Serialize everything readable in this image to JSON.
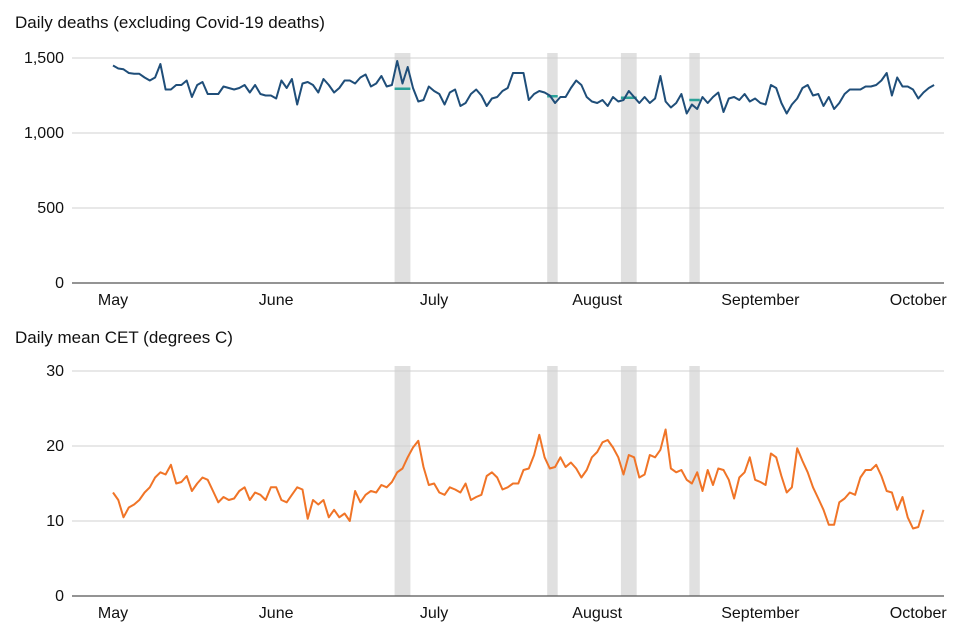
{
  "chart_data": [
    {
      "type": "line",
      "title": "Daily deaths (excluding Covid-19 deaths)",
      "x_start": "2020-05-01",
      "x_end": "2020-09-30",
      "x_tick_labels": [
        "May",
        "June",
        "July",
        "August",
        "September",
        "October"
      ],
      "x_tick_dates": [
        "2020-05-01",
        "2020-06-01",
        "2020-07-01",
        "2020-08-01",
        "2020-09-01",
        "2020-10-01"
      ],
      "y_ticks": [
        0,
        500,
        1000,
        1500
      ],
      "y_tick_labels": [
        "0",
        "500",
        "1,000",
        "1,500"
      ],
      "ylim": [
        0,
        1500
      ],
      "grid": "horizontal",
      "line_color": "#1f4e79",
      "baseline_color": "#2aa198",
      "highlight_color": "#e0e0e0",
      "highlight_periods": [
        [
          "2020-06-24",
          "2020-06-26"
        ],
        [
          "2020-07-23",
          "2020-07-24"
        ],
        [
          "2020-08-06",
          "2020-08-08"
        ],
        [
          "2020-08-19",
          "2020-08-20"
        ]
      ],
      "baselines": [
        {
          "start": "2020-06-24",
          "end": "2020-06-26",
          "value": 1295
        },
        {
          "start": "2020-07-23",
          "end": "2020-07-24",
          "value": 1245
        },
        {
          "start": "2020-08-06",
          "end": "2020-08-08",
          "value": 1235
        },
        {
          "start": "2020-08-19",
          "end": "2020-08-20",
          "value": 1220
        }
      ],
      "values": [
        1450,
        1430,
        1425,
        1400,
        1395,
        1395,
        1370,
        1350,
        1370,
        1460,
        1290,
        1290,
        1320,
        1320,
        1350,
        1240,
        1320,
        1340,
        1260,
        1260,
        1260,
        1310,
        1300,
        1290,
        1300,
        1320,
        1270,
        1320,
        1260,
        1250,
        1250,
        1230,
        1350,
        1300,
        1360,
        1190,
        1330,
        1340,
        1320,
        1270,
        1360,
        1320,
        1270,
        1300,
        1350,
        1350,
        1330,
        1370,
        1390,
        1310,
        1330,
        1380,
        1310,
        1320,
        1480,
        1330,
        1440,
        1300,
        1210,
        1220,
        1310,
        1280,
        1260,
        1190,
        1270,
        1290,
        1180,
        1200,
        1260,
        1290,
        1250,
        1180,
        1230,
        1240,
        1280,
        1300,
        1400,
        1400,
        1400,
        1220,
        1260,
        1280,
        1270,
        1250,
        1200,
        1240,
        1240,
        1300,
        1350,
        1320,
        1240,
        1210,
        1200,
        1220,
        1180,
        1240,
        1210,
        1220,
        1280,
        1240,
        1200,
        1240,
        1200,
        1230,
        1380,
        1210,
        1170,
        1200,
        1260,
        1130,
        1190,
        1160,
        1240,
        1200,
        1240,
        1270,
        1140,
        1230,
        1240,
        1220,
        1260,
        1210,
        1230,
        1200,
        1190,
        1320,
        1300,
        1200,
        1130,
        1190,
        1230,
        1300,
        1320,
        1250,
        1260,
        1180,
        1240,
        1160,
        1200,
        1260,
        1290,
        1290,
        1290,
        1310,
        1310,
        1320,
        1350,
        1400,
        1250,
        1370,
        1310,
        1310,
        1290,
        1230,
        1270,
        1300,
        1320
      ]
    },
    {
      "type": "line",
      "title": "Daily mean CET (degrees C)",
      "x_start": "2020-05-01",
      "x_end": "2020-09-30",
      "x_tick_labels": [
        "May",
        "June",
        "July",
        "August",
        "September",
        "October"
      ],
      "x_tick_dates": [
        "2020-05-01",
        "2020-06-01",
        "2020-07-01",
        "2020-08-01",
        "2020-09-01",
        "2020-10-01"
      ],
      "y_ticks": [
        0,
        10,
        20,
        30
      ],
      "y_tick_labels": [
        "0",
        "10",
        "20",
        "30"
      ],
      "ylim": [
        0,
        30
      ],
      "grid": "horizontal",
      "line_color": "#f07427",
      "highlight_color": "#e0e0e0",
      "highlight_periods": [
        [
          "2020-06-24",
          "2020-06-26"
        ],
        [
          "2020-07-23",
          "2020-07-24"
        ],
        [
          "2020-08-06",
          "2020-08-08"
        ],
        [
          "2020-08-19",
          "2020-08-20"
        ]
      ],
      "values": [
        13.8,
        12.8,
        10.5,
        11.8,
        12.2,
        12.8,
        13.8,
        14.5,
        15.8,
        16.5,
        16.2,
        17.5,
        15,
        15.2,
        16,
        14,
        15,
        15.8,
        15.5,
        14,
        12.5,
        13.2,
        12.8,
        13,
        14,
        14.5,
        12.8,
        13.8,
        13.5,
        12.8,
        14.5,
        14.5,
        12.8,
        12.5,
        13.5,
        14.5,
        14.2,
        10.3,
        12.8,
        12.2,
        12.8,
        10.5,
        11.5,
        10.5,
        11,
        10,
        14,
        12.5,
        13.5,
        14,
        13.8,
        14.8,
        14.5,
        15.2,
        16.5,
        17,
        18.5,
        19.8,
        20.7,
        17.2,
        14.8,
        15,
        13.8,
        13.5,
        14.5,
        14.2,
        13.8,
        15,
        12.8,
        13.2,
        13.5,
        16,
        16.5,
        15.8,
        14.2,
        14.5,
        15,
        15,
        16.8,
        17,
        18.8,
        21.5,
        18.5,
        17,
        17.2,
        18.5,
        17.2,
        17.8,
        17,
        15.8,
        16.8,
        18.5,
        19.2,
        20.5,
        20.8,
        19.8,
        18.5,
        16.2,
        18.8,
        18.5,
        15.8,
        16.2,
        18.8,
        18.5,
        19.5,
        22.2,
        17,
        16.5,
        16.8,
        15.5,
        15,
        16.5,
        14,
        16.8,
        14.8,
        17,
        16.8,
        15.5,
        13,
        15.8,
        16.5,
        18.5,
        15.5,
        15.2,
        14.8,
        19,
        18.5,
        16,
        13.8,
        14.5,
        19.7,
        18,
        16.5,
        14.5,
        13,
        11.5,
        9.5,
        9.5,
        12.5,
        13,
        13.8,
        13.5,
        15.8,
        16.8,
        16.8,
        17.5,
        16,
        14,
        13.8,
        11.5,
        13.2,
        10.5,
        9,
        9.2,
        11.5
      ]
    }
  ]
}
